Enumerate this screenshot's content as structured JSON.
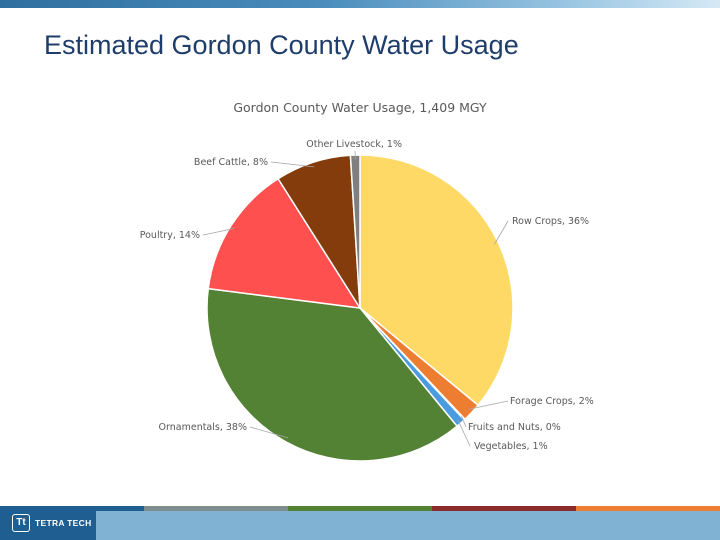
{
  "slide": {
    "title": "Estimated Gordon County Water Usage",
    "logo_text": "TETRA TECH",
    "logo_mark": "Tt",
    "top_bar_colors": [
      "#2f6f9f",
      "#9cc7e3"
    ],
    "footer_stripe_colors": [
      "#1e5e91",
      "#7f8c8d",
      "#548235",
      "#8b2c2c",
      "#ed7d31"
    ],
    "footer_bar_color": "#7fb2d3"
  },
  "chart_data": {
    "type": "pie",
    "title": "Gordon County Water Usage, 1,409 MGY",
    "legend": "none",
    "slices": [
      {
        "label": "Row Crops, 36%",
        "value": 36,
        "color": "#ffd966"
      },
      {
        "label": "Forage Crops, 2%",
        "value": 2,
        "color": "#ed7d31"
      },
      {
        "label": "Fruits and Nuts, 0%",
        "value": 0.1,
        "color": "#a5a5a5"
      },
      {
        "label": "Vegetables, 1%",
        "value": 1,
        "color": "#4a9be0"
      },
      {
        "label": "Ornamentals, 38%",
        "value": 38,
        "color": "#548235"
      },
      {
        "label": "Poultry, 14%",
        "value": 14,
        "color": "#ff5050"
      },
      {
        "label": "Beef Cattle, 8%",
        "value": 8,
        "color": "#843c0c"
      },
      {
        "label": "Other Livestock, 1%",
        "value": 1,
        "color": "#7f7f7f"
      }
    ]
  }
}
